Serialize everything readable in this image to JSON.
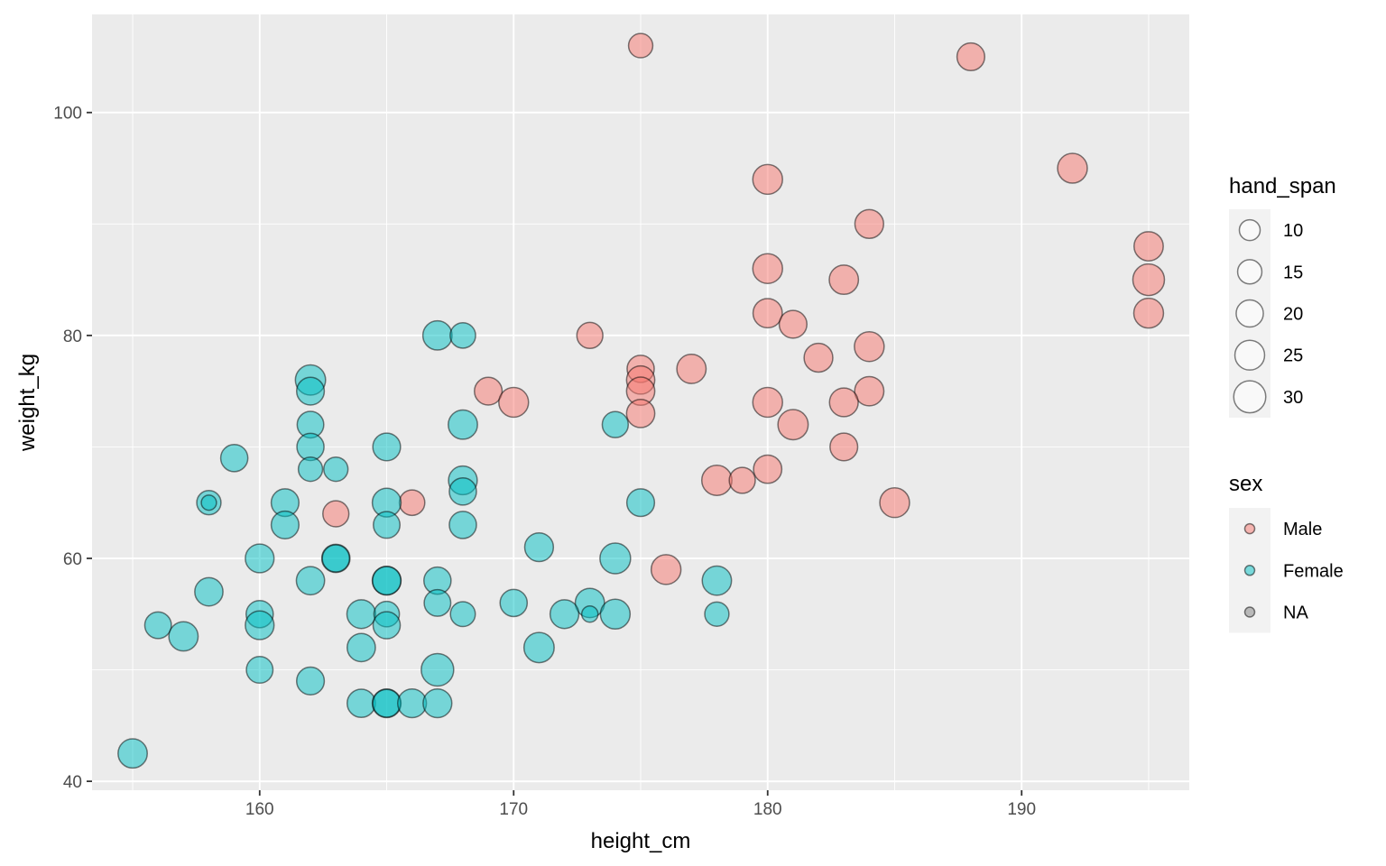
{
  "chart_data": {
    "type": "scatter",
    "title": "",
    "xlabel": "height_cm",
    "ylabel": "weight_kg",
    "xlim": [
      153.4,
      196.6
    ],
    "ylim": [
      39.2,
      108.8
    ],
    "x_ticks": [
      160,
      170,
      180,
      190
    ],
    "y_ticks": [
      40,
      60,
      80,
      100
    ],
    "grid": true,
    "colors": {
      "Male": "#F8766D",
      "Female": "#00BFC4",
      "NA": "#7F7F7F"
    },
    "size_legend": {
      "title": "hand_span",
      "breaks": [
        10,
        15,
        20,
        25,
        30
      ]
    },
    "color_legend": {
      "title": "sex",
      "labels": [
        "Male",
        "Female",
        "NA"
      ]
    },
    "legend_position": "right",
    "series": [
      {
        "name": "Male",
        "points": [
          [
            175,
            106,
            15
          ],
          [
            188,
            105,
            21
          ],
          [
            192,
            95,
            25
          ],
          [
            180,
            94,
            25
          ],
          [
            184,
            90,
            23
          ],
          [
            195,
            88,
            24
          ],
          [
            180,
            86,
            25
          ],
          [
            183,
            85,
            24
          ],
          [
            195,
            85,
            29
          ],
          [
            180,
            82,
            24
          ],
          [
            195,
            82,
            25
          ],
          [
            181,
            81,
            21
          ],
          [
            173,
            80,
            18
          ],
          [
            184,
            79,
            25
          ],
          [
            182,
            78,
            23
          ],
          [
            175,
            77,
            20
          ],
          [
            177,
            77,
            24
          ],
          [
            175,
            76,
            22
          ],
          [
            169,
            75,
            21
          ],
          [
            175,
            75,
            22
          ],
          [
            184,
            75,
            24
          ],
          [
            170,
            74,
            25
          ],
          [
            180,
            74,
            25
          ],
          [
            183,
            74,
            23
          ],
          [
            175,
            73,
            22
          ],
          [
            181,
            72,
            26
          ],
          [
            183,
            70,
            21
          ],
          [
            180,
            68,
            22
          ],
          [
            178,
            67,
            26
          ],
          [
            179,
            67,
            18
          ],
          [
            166,
            65,
            17
          ],
          [
            185,
            65,
            25
          ],
          [
            163,
            64,
            18
          ],
          [
            176,
            59,
            25
          ]
        ]
      },
      {
        "name": "Female",
        "points": [
          [
            167,
            80,
            24
          ],
          [
            168,
            80,
            17
          ],
          [
            162,
            76,
            26
          ],
          [
            162,
            75,
            21
          ],
          [
            162,
            72,
            19
          ],
          [
            168,
            72,
            24
          ],
          [
            174,
            72,
            18
          ],
          [
            162,
            70,
            20
          ],
          [
            165,
            70,
            21
          ],
          [
            159,
            69,
            20
          ],
          [
            162,
            68,
            15
          ],
          [
            163,
            68,
            15
          ],
          [
            168,
            67,
            23
          ],
          [
            168,
            66,
            20
          ],
          [
            158,
            65,
            15
          ],
          [
            158,
            65,
            4
          ],
          [
            161,
            65,
            21
          ],
          [
            165,
            65,
            23
          ],
          [
            175,
            65,
            21
          ],
          [
            161,
            63,
            21
          ],
          [
            165,
            63,
            19
          ],
          [
            168,
            63,
            20
          ],
          [
            171,
            61,
            23
          ],
          [
            160,
            60,
            23
          ],
          [
            163,
            60,
            22
          ],
          [
            163,
            60,
            20
          ],
          [
            174,
            60,
            27
          ],
          [
            162,
            58,
            22
          ],
          [
            165,
            58,
            23
          ],
          [
            165,
            58,
            22
          ],
          [
            167,
            58,
            20
          ],
          [
            178,
            58,
            24
          ],
          [
            158,
            57,
            22
          ],
          [
            170,
            56,
            20
          ],
          [
            167,
            56,
            19
          ],
          [
            173,
            56,
            24
          ],
          [
            160,
            55,
            20
          ],
          [
            164,
            55,
            23
          ],
          [
            165,
            55,
            17
          ],
          [
            168,
            55,
            16
          ],
          [
            172,
            55,
            23
          ],
          [
            173,
            55,
            5
          ],
          [
            174,
            55,
            25
          ],
          [
            178,
            55,
            15
          ],
          [
            156,
            54,
            19
          ],
          [
            160,
            54,
            23
          ],
          [
            165,
            54,
            20
          ],
          [
            157,
            53,
            24
          ],
          [
            164,
            52,
            22
          ],
          [
            171,
            52,
            26
          ],
          [
            160,
            50,
            19
          ],
          [
            167,
            50,
            31
          ],
          [
            162,
            49,
            21
          ],
          [
            164,
            47,
            22
          ],
          [
            165,
            47,
            23
          ],
          [
            165,
            47,
            21
          ],
          [
            166,
            47,
            23
          ],
          [
            167,
            47,
            23
          ],
          [
            155,
            42.5,
            24
          ]
        ]
      },
      {
        "name": "NA",
        "points": []
      }
    ]
  }
}
